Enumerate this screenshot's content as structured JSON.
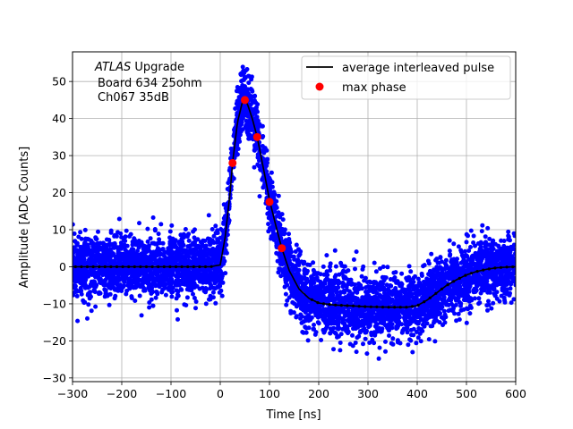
{
  "chart_data": {
    "type": "scatter",
    "title": "",
    "xlabel": "Time [ns]",
    "ylabel": "Amplitude [ADC Counts]",
    "xlim": [
      -300,
      600
    ],
    "ylim": [
      -31,
      58
    ],
    "xticks": [
      -300,
      -200,
      -100,
      0,
      100,
      200,
      300,
      400,
      500,
      600
    ],
    "xtick_labels": [
      "−300",
      "−200",
      "−100",
      "0",
      "100",
      "200",
      "300",
      "400",
      "500",
      "600"
    ],
    "yticks": [
      -30,
      -20,
      -10,
      0,
      10,
      20,
      30,
      40,
      50
    ],
    "ytick_labels": [
      "−30",
      "−20",
      "−10",
      "0",
      "10",
      "20",
      "30",
      "40",
      "50"
    ],
    "grid": true,
    "annotation": {
      "italic": "ATLAS",
      "line1_rest": " Upgrade",
      "line2": "Board 634 25ohm",
      "line3": "Ch067 35dB"
    },
    "legend": {
      "placement": "top-right",
      "entries": [
        {
          "label": "average interleaved pulse",
          "style": "line",
          "color": "#000000"
        },
        {
          "label": "max phase",
          "style": "marker",
          "color": "#ff0000"
        }
      ]
    },
    "series": [
      {
        "name": "samples",
        "style": "scatter",
        "color": "#0000ff",
        "noise_sigma": 4.2,
        "description_range": "dense per-sample points spread around the average pulse"
      },
      {
        "name": "average interleaved pulse",
        "style": "line",
        "color": "#000000",
        "x": [
          -300,
          -200,
          -100,
          -20,
          0,
          10,
          20,
          25,
          35,
          45,
          50,
          55,
          65,
          75,
          90,
          100,
          115,
          125,
          140,
          160,
          180,
          200,
          230,
          260,
          300,
          340,
          380,
          400,
          420,
          440,
          460,
          480,
          500,
          520,
          540,
          560,
          580,
          600
        ],
        "y": [
          0,
          0,
          0,
          0,
          0.5,
          8,
          20,
          28,
          39,
          44.5,
          45,
          44,
          40,
          35,
          25,
          18,
          10,
          5,
          -1,
          -6,
          -8.5,
          -9.8,
          -10.3,
          -10.5,
          -10.8,
          -10.9,
          -10.9,
          -10.5,
          -9,
          -7,
          -5,
          -3.5,
          -2.2,
          -1.3,
          -0.7,
          -0.3,
          -0.1,
          0
        ]
      },
      {
        "name": "max phase",
        "style": "marker",
        "color": "#ff0000",
        "x": [
          25,
          50,
          75,
          100,
          125
        ],
        "y": [
          28,
          45,
          35,
          17.5,
          5
        ]
      }
    ]
  }
}
